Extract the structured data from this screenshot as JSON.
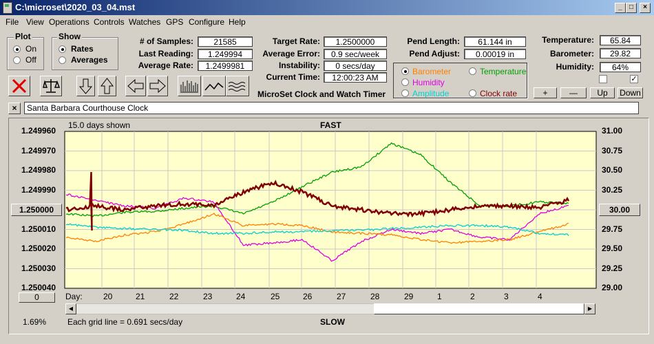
{
  "window": {
    "title": "C:\\microset\\2020_03_04.mst"
  },
  "menu": [
    "File",
    "View",
    "Operations",
    "Controls",
    "Watches",
    "GPS",
    "Configure",
    "Help"
  ],
  "plot_group": {
    "title": "Plot",
    "options": [
      "On",
      "Off"
    ],
    "selected": "On"
  },
  "show_group": {
    "title": "Show",
    "options": [
      "Rates",
      "Averages"
    ],
    "selected": "Rates"
  },
  "stats": {
    "samples_label": "# of Samples:",
    "samples": "21585",
    "last_label": "Last Reading:",
    "last": "1.249994",
    "avg_rate_label": "Average Rate:",
    "avg_rate": "1.2499981",
    "target_label": "Target Rate:",
    "target": "1.2500000",
    "avg_err_label": "Average Error:",
    "avg_err": "0.9 sec/week",
    "instab_label": "Instability:",
    "instab": "0 secs/day",
    "time_label": "Current Time:",
    "time": "12:00:23 AM",
    "pend_len_label": "Pend Length:",
    "pend_len": "61.144 in",
    "pend_adj_label": "Pend Adjust:",
    "pend_adj": "0.00019 in",
    "temp_label": "Temperature:",
    "temp": "65.84",
    "baro_label": "Barometer:",
    "baro": "29.82",
    "hum_label": "Humidity:",
    "hum": "64%"
  },
  "heading": "MicroSet Clock and Watch Timer",
  "series_select": {
    "options": [
      {
        "label": "Barometer",
        "color": "#ff8000"
      },
      {
        "label": "Temperature",
        "color": "#00a000"
      },
      {
        "label": "Humidity",
        "color": "#e000e0"
      },
      {
        "label": "Amplitude",
        "color": "#00d0d0"
      },
      {
        "label": "Clock rate",
        "color": "#800000"
      }
    ],
    "selected": "Barometer"
  },
  "adjust_buttons": [
    "+",
    "—",
    "Up",
    "Down"
  ],
  "clock_name": "Santa Barbara Courthouse Clock",
  "close_glyph": "×",
  "graph": {
    "days_shown": "15.0 days shown",
    "top_label": "FAST",
    "bottom_label": "SLOW",
    "center_button": "1.250000",
    "right_button": "30.00",
    "zero_button": "0",
    "percent": "1.69%",
    "grid_note": "Each grid line = 0.691 secs/day",
    "day_prefix": "Day:"
  },
  "chart_data": {
    "type": "line",
    "title": "",
    "y_left": {
      "ticks": [
        "1.249960",
        "1.249970",
        "1.249980",
        "1.249990",
        "1.250000",
        "1.250010",
        "1.250020",
        "1.250030",
        "1.250040"
      ],
      "ylim": [
        1.24996,
        1.25004
      ],
      "inverted": true
    },
    "y_right": {
      "ticks": [
        "31.00",
        "30.75",
        "30.50",
        "30.25",
        "30.00",
        "29.75",
        "29.50",
        "29.25",
        "29.00"
      ],
      "ylim": [
        29.0,
        31.0
      ]
    },
    "x_ticks": [
      "20",
      "21",
      "22",
      "23",
      "24",
      "25",
      "26",
      "27",
      "28",
      "29",
      "1",
      "2",
      "3",
      "4"
    ],
    "grid": true,
    "series": [
      {
        "name": "Temperature",
        "color": "#00a000",
        "y": [
          29.95,
          29.92,
          29.97,
          29.98,
          30.02,
          30.05,
          29.95,
          30.1,
          30.3,
          30.48,
          30.55,
          30.85,
          30.7,
          30.35,
          30.05,
          30.05,
          30.1,
          30.08
        ]
      },
      {
        "name": "Humidity",
        "color": "#e000e0",
        "y": [
          30.2,
          30.12,
          30.05,
          30.02,
          30.15,
          30.1,
          29.55,
          29.58,
          29.62,
          29.35,
          29.6,
          29.75,
          29.7,
          29.75,
          29.65,
          29.62,
          29.95,
          30.05
        ]
      },
      {
        "name": "Barometer",
        "color": "#ff8000",
        "y": [
          29.65,
          29.6,
          29.68,
          29.72,
          29.82,
          29.95,
          29.8,
          29.82,
          29.8,
          29.72,
          29.7,
          29.68,
          29.62,
          29.58,
          29.6,
          29.62,
          29.72,
          29.82
        ]
      },
      {
        "name": "Amplitude",
        "color": "#00d0d0",
        "y": [
          29.82,
          29.78,
          29.76,
          29.75,
          29.74,
          29.7,
          29.7,
          29.72,
          29.72,
          29.73,
          29.74,
          29.76,
          29.78,
          29.8,
          29.8,
          29.78,
          29.7,
          29.68
        ]
      },
      {
        "name": "Clock rate",
        "color": "#800000",
        "y": [
          1.25,
          1.249998,
          1.25,
          1.249998,
          1.249997,
          1.249998,
          1.249991,
          1.249986,
          1.249991,
          1.249998,
          1.25,
          1.250002,
          1.250002,
          1.25,
          1.249998,
          1.249998,
          1.249999,
          1.249995
        ]
      }
    ]
  }
}
